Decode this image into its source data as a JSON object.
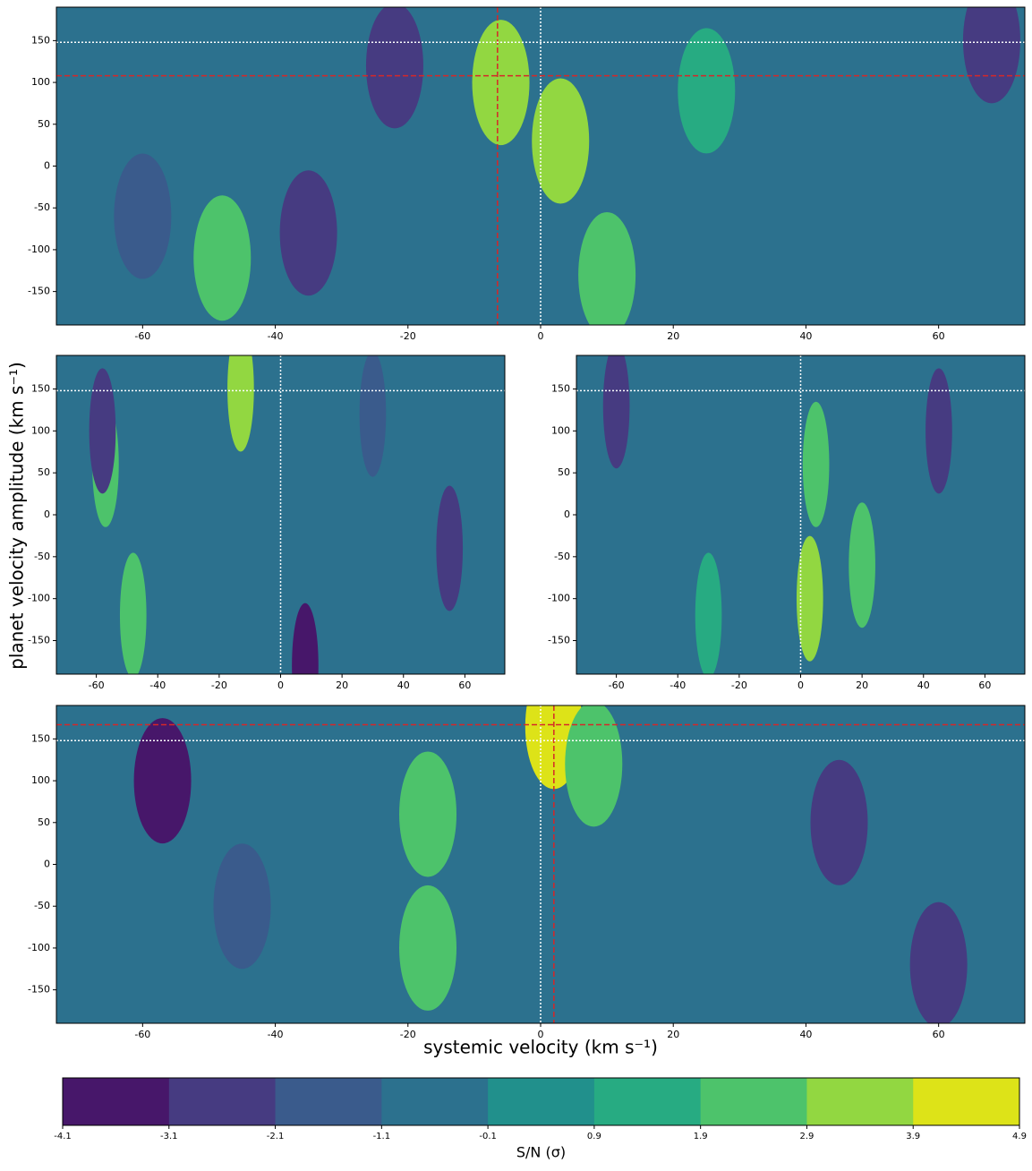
{
  "chart_data": [
    {
      "type": "contour",
      "xlim": [
        -73,
        73
      ],
      "ylim": [
        -190,
        190
      ],
      "xticks": [
        -60,
        -40,
        -20,
        0,
        20,
        40,
        60
      ],
      "yticks": [
        -150,
        -100,
        -50,
        0,
        50,
        100,
        150
      ],
      "ylabel": "planet velocity amplitude (km s⁻¹)",
      "vlines": [
        {
          "value": -6.5,
          "style": "dashed",
          "color": "#d62728"
        },
        {
          "value": 0,
          "style": "dotted",
          "color": "#ffffff"
        }
      ],
      "hlines": [
        {
          "value": 108,
          "style": "dashed",
          "color": "#d62728"
        },
        {
          "value": 148,
          "style": "dotted",
          "color": "#ffffff"
        }
      ],
      "features": {
        "x": [
          -6,
          3,
          -48,
          -22,
          -35,
          68,
          -60,
          10,
          25
        ],
        "y": [
          100,
          30,
          -110,
          120,
          -80,
          150,
          -60,
          -130,
          90
        ],
        "level": [
          3.4,
          3.4,
          2.4,
          -2.6,
          -2.6,
          -2.6,
          -1.6,
          2.4,
          1.4
        ]
      }
    },
    {
      "type": "contour",
      "xlim": [
        -73,
        73
      ],
      "ylim": [
        -190,
        190
      ],
      "xticks": [
        -60,
        -40,
        -20,
        0,
        20,
        40,
        60
      ],
      "yticks": [
        -150,
        -100,
        -50,
        0,
        50,
        100,
        150
      ],
      "vlines": [
        {
          "value": 0,
          "style": "dotted",
          "color": "#ffffff"
        }
      ],
      "hlines": [
        {
          "value": 148,
          "style": "dotted",
          "color": "#ffffff"
        }
      ],
      "features": {
        "x": [
          -13,
          -57,
          8,
          -58,
          -48,
          55,
          30
        ],
        "y": [
          150,
          60,
          -180,
          100,
          -120,
          -40,
          120
        ],
        "level": [
          3.4,
          2.4,
          -3.6,
          -2.6,
          2.4,
          -2.6,
          -1.6
        ]
      }
    },
    {
      "type": "contour",
      "xlim": [
        -73,
        73
      ],
      "ylim": [
        -190,
        190
      ],
      "xticks": [
        -60,
        -40,
        -20,
        0,
        20,
        40,
        60
      ],
      "yticks": [
        -150,
        -100,
        -50,
        0,
        50,
        100,
        150
      ],
      "vlines": [
        {
          "value": 0,
          "style": "dotted",
          "color": "#ffffff"
        }
      ],
      "hlines": [
        {
          "value": 148,
          "style": "dotted",
          "color": "#ffffff"
        }
      ],
      "features": {
        "x": [
          3,
          20,
          -60,
          5,
          45,
          -30
        ],
        "y": [
          -100,
          -60,
          130,
          60,
          100,
          -120
        ],
        "level": [
          3.4,
          2.4,
          -2.6,
          2.4,
          -2.6,
          1.4
        ]
      }
    },
    {
      "type": "contour",
      "xlim": [
        -73,
        73
      ],
      "ylim": [
        -190,
        190
      ],
      "xticks": [
        -60,
        -40,
        -20,
        0,
        20,
        40,
        60
      ],
      "yticks": [
        -150,
        -100,
        -50,
        0,
        50,
        100,
        150
      ],
      "xlabel": "systemic velocity (km s⁻¹)",
      "vlines": [
        {
          "value": 2,
          "style": "dashed",
          "color": "#d62728"
        },
        {
          "value": 0,
          "style": "dotted",
          "color": "#ffffff"
        }
      ],
      "hlines": [
        {
          "value": 167,
          "style": "dashed",
          "color": "#d62728"
        },
        {
          "value": 148,
          "style": "dotted",
          "color": "#ffffff"
        }
      ],
      "features": {
        "x": [
          2,
          -17,
          -57,
          45,
          -17,
          8,
          -45,
          60
        ],
        "y": [
          165,
          60,
          100,
          50,
          -100,
          120,
          -50,
          -120
        ],
        "level": [
          4.4,
          2.4,
          -3.6,
          -2.6,
          2.4,
          2.4,
          -1.6,
          -2.6
        ]
      }
    },
    {
      "type": "colorbar",
      "label": "S/N (σ)",
      "levels": [
        -4.1,
        -3.1,
        -2.1,
        -1.1,
        -0.1,
        0.9,
        1.9,
        2.9,
        3.9,
        4.9
      ],
      "colors": [
        "#47176a",
        "#463b81",
        "#3a5b8c",
        "#2c718e",
        "#21908c",
        "#27ab82",
        "#4dc36b",
        "#92d741",
        "#dde318"
      ]
    }
  ]
}
